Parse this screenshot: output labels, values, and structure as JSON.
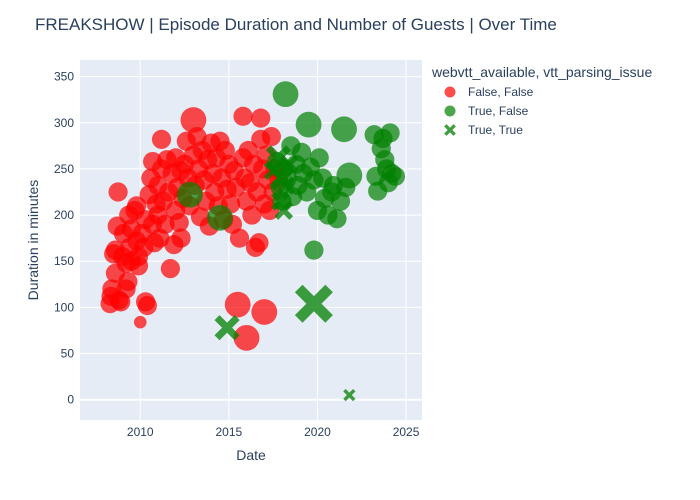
{
  "chart_data": {
    "type": "scatter",
    "title": "FREAKSHOW | Episode Duration and Number of Guests | Over Time",
    "xlabel": "Date",
    "ylabel": "Duration in minutes",
    "xlim": [
      2006.6,
      2025.9
    ],
    "ylim": [
      -22,
      368
    ],
    "xticks": [
      2010,
      2015,
      2020,
      2025
    ],
    "yticks": [
      0,
      50,
      100,
      150,
      200,
      250,
      300,
      350
    ],
    "grid": true,
    "legend": {
      "title": "webvtt_available, vtt_parsing_issue",
      "placement": "right"
    },
    "colors": {
      "red": "#ff0000",
      "green": "#008000",
      "plot_bg": "#e5ecf6"
    },
    "series": [
      {
        "name": "False, False",
        "color": "#ff0000",
        "symbol": "circle",
        "points": [
          {
            "x": 2008.3,
            "y": 104,
            "g": 2
          },
          {
            "x": 2008.35,
            "y": 112,
            "g": 2
          },
          {
            "x": 2008.4,
            "y": 120,
            "g": 2
          },
          {
            "x": 2008.5,
            "y": 158,
            "g": 2
          },
          {
            "x": 2008.6,
            "y": 162,
            "g": 2
          },
          {
            "x": 2008.6,
            "y": 137,
            "g": 2
          },
          {
            "x": 2008.7,
            "y": 188,
            "g": 2
          },
          {
            "x": 2008.75,
            "y": 225,
            "g": 2
          },
          {
            "x": 2008.8,
            "y": 108,
            "g": 2
          },
          {
            "x": 2008.9,
            "y": 106,
            "g": 2
          },
          {
            "x": 2009.0,
            "y": 155,
            "g": 2
          },
          {
            "x": 2009.05,
            "y": 180,
            "g": 2
          },
          {
            "x": 2009.2,
            "y": 148,
            "g": 2
          },
          {
            "x": 2009.2,
            "y": 120,
            "g": 2
          },
          {
            "x": 2009.3,
            "y": 128,
            "g": 2
          },
          {
            "x": 2009.35,
            "y": 200,
            "g": 2
          },
          {
            "x": 2009.4,
            "y": 165,
            "g": 2
          },
          {
            "x": 2009.5,
            "y": 150,
            "g": 2
          },
          {
            "x": 2009.5,
            "y": 185,
            "g": 2
          },
          {
            "x": 2009.7,
            "y": 205,
            "g": 2
          },
          {
            "x": 2009.8,
            "y": 210,
            "g": 2
          },
          {
            "x": 2009.8,
            "y": 172,
            "g": 2
          },
          {
            "x": 2009.9,
            "y": 155,
            "g": 2
          },
          {
            "x": 2009.9,
            "y": 145,
            "g": 2
          },
          {
            "x": 2010.0,
            "y": 84,
            "g": 1
          },
          {
            "x": 2010.1,
            "y": 180,
            "g": 2
          },
          {
            "x": 2010.2,
            "y": 165,
            "g": 2
          },
          {
            "x": 2010.3,
            "y": 195,
            "g": 2
          },
          {
            "x": 2010.3,
            "y": 106,
            "g": 2
          },
          {
            "x": 2010.4,
            "y": 102,
            "g": 2
          },
          {
            "x": 2010.5,
            "y": 222,
            "g": 2
          },
          {
            "x": 2010.6,
            "y": 240,
            "g": 2
          },
          {
            "x": 2010.7,
            "y": 258,
            "g": 2
          },
          {
            "x": 2010.7,
            "y": 190,
            "g": 2
          },
          {
            "x": 2010.8,
            "y": 170,
            "g": 2
          },
          {
            "x": 2010.9,
            "y": 212,
            "g": 2
          },
          {
            "x": 2011.0,
            "y": 232,
            "g": 2
          },
          {
            "x": 2011.0,
            "y": 200,
            "g": 2
          },
          {
            "x": 2011.1,
            "y": 175,
            "g": 2
          },
          {
            "x": 2011.2,
            "y": 282,
            "g": 2
          },
          {
            "x": 2011.2,
            "y": 250,
            "g": 2
          },
          {
            "x": 2011.3,
            "y": 215,
            "g": 2
          },
          {
            "x": 2011.4,
            "y": 190,
            "g": 2
          },
          {
            "x": 2011.5,
            "y": 260,
            "g": 2
          },
          {
            "x": 2011.6,
            "y": 225,
            "g": 2
          },
          {
            "x": 2011.7,
            "y": 142,
            "g": 2
          },
          {
            "x": 2011.8,
            "y": 245,
            "g": 2
          },
          {
            "x": 2011.9,
            "y": 168,
            "g": 2
          },
          {
            "x": 2012.0,
            "y": 262,
            "g": 2
          },
          {
            "x": 2012.0,
            "y": 205,
            "g": 2
          },
          {
            "x": 2012.1,
            "y": 230,
            "g": 2
          },
          {
            "x": 2012.2,
            "y": 192,
            "g": 2
          },
          {
            "x": 2012.3,
            "y": 248,
            "g": 2
          },
          {
            "x": 2012.3,
            "y": 175,
            "g": 2
          },
          {
            "x": 2012.4,
            "y": 218,
            "g": 2
          },
          {
            "x": 2012.5,
            "y": 255,
            "g": 2
          },
          {
            "x": 2012.6,
            "y": 280,
            "g": 2
          },
          {
            "x": 2012.7,
            "y": 240,
            "g": 2
          },
          {
            "x": 2012.8,
            "y": 210,
            "g": 2
          },
          {
            "x": 2013.0,
            "y": 303,
            "g": 3
          },
          {
            "x": 2013.0,
            "y": 265,
            "g": 2
          },
          {
            "x": 2013.1,
            "y": 232,
            "g": 2
          },
          {
            "x": 2013.2,
            "y": 285,
            "g": 2
          },
          {
            "x": 2013.3,
            "y": 250,
            "g": 2
          },
          {
            "x": 2013.4,
            "y": 198,
            "g": 2
          },
          {
            "x": 2013.5,
            "y": 270,
            "g": 2
          },
          {
            "x": 2013.6,
            "y": 238,
            "g": 2
          },
          {
            "x": 2013.7,
            "y": 215,
            "g": 2
          },
          {
            "x": 2013.8,
            "y": 260,
            "g": 2
          },
          {
            "x": 2013.9,
            "y": 188,
            "g": 2
          },
          {
            "x": 2014.0,
            "y": 278,
            "g": 2
          },
          {
            "x": 2014.1,
            "y": 245,
            "g": 2
          },
          {
            "x": 2014.2,
            "y": 225,
            "g": 2
          },
          {
            "x": 2014.3,
            "y": 262,
            "g": 2
          },
          {
            "x": 2014.4,
            "y": 210,
            "g": 2
          },
          {
            "x": 2014.5,
            "y": 280,
            "g": 2
          },
          {
            "x": 2014.6,
            "y": 240,
            "g": 2
          },
          {
            "x": 2014.7,
            "y": 195,
            "g": 2
          },
          {
            "x": 2014.8,
            "y": 270,
            "g": 2
          },
          {
            "x": 2014.9,
            "y": 228,
            "g": 2
          },
          {
            "x": 2015.0,
            "y": 255,
            "g": 2
          },
          {
            "x": 2015.1,
            "y": 212,
            "g": 2
          },
          {
            "x": 2015.2,
            "y": 190,
            "g": 2
          },
          {
            "x": 2015.3,
            "y": 248,
            "g": 2
          },
          {
            "x": 2015.4,
            "y": 230,
            "g": 2
          },
          {
            "x": 2015.5,
            "y": 103,
            "g": 3
          },
          {
            "x": 2015.6,
            "y": 175,
            "g": 2
          },
          {
            "x": 2015.8,
            "y": 307,
            "g": 2
          },
          {
            "x": 2015.8,
            "y": 262,
            "g": 2
          },
          {
            "x": 2015.9,
            "y": 240,
            "g": 2
          },
          {
            "x": 2016.0,
            "y": 67,
            "g": 3
          },
          {
            "x": 2016.0,
            "y": 215,
            "g": 2
          },
          {
            "x": 2016.1,
            "y": 270,
            "g": 2
          },
          {
            "x": 2016.2,
            "y": 235,
            "g": 2
          },
          {
            "x": 2016.3,
            "y": 200,
            "g": 2
          },
          {
            "x": 2016.4,
            "y": 255,
            "g": 2
          },
          {
            "x": 2016.5,
            "y": 165,
            "g": 2
          },
          {
            "x": 2016.6,
            "y": 225,
            "g": 2
          },
          {
            "x": 2016.7,
            "y": 170,
            "g": 2
          },
          {
            "x": 2016.8,
            "y": 305,
            "g": 2
          },
          {
            "x": 2016.8,
            "y": 282,
            "g": 2
          },
          {
            "x": 2016.9,
            "y": 250,
            "g": 2
          },
          {
            "x": 2017.0,
            "y": 95,
            "g": 3
          },
          {
            "x": 2017.0,
            "y": 212,
            "g": 2
          },
          {
            "x": 2017.1,
            "y": 265,
            "g": 2
          },
          {
            "x": 2017.2,
            "y": 238,
            "g": 2
          },
          {
            "x": 2017.3,
            "y": 205,
            "g": 2
          },
          {
            "x": 2017.4,
            "y": 285,
            "g": 2
          },
          {
            "x": 2017.5,
            "y": 225,
            "g": 2
          },
          {
            "x": 2017.6,
            "y": 250,
            "g": 2
          },
          {
            "x": 2017.8,
            "y": 240,
            "g": 2
          }
        ]
      },
      {
        "name": "True, False",
        "color": "#008000",
        "symbol": "circle",
        "points": [
          {
            "x": 2012.8,
            "y": 222,
            "g": 3
          },
          {
            "x": 2014.5,
            "y": 197,
            "g": 3
          },
          {
            "x": 2017.7,
            "y": 258,
            "g": 2
          },
          {
            "x": 2017.9,
            "y": 230,
            "g": 2
          },
          {
            "x": 2018.0,
            "y": 215,
            "g": 2
          },
          {
            "x": 2018.1,
            "y": 250,
            "g": 2
          },
          {
            "x": 2018.2,
            "y": 331,
            "g": 3
          },
          {
            "x": 2018.3,
            "y": 240,
            "g": 2
          },
          {
            "x": 2018.5,
            "y": 275,
            "g": 2
          },
          {
            "x": 2018.6,
            "y": 220,
            "g": 2
          },
          {
            "x": 2018.8,
            "y": 255,
            "g": 2
          },
          {
            "x": 2018.9,
            "y": 232,
            "g": 2
          },
          {
            "x": 2019.1,
            "y": 268,
            "g": 2
          },
          {
            "x": 2019.2,
            "y": 245,
            "g": 2
          },
          {
            "x": 2019.4,
            "y": 225,
            "g": 2
          },
          {
            "x": 2019.5,
            "y": 298,
            "g": 3
          },
          {
            "x": 2019.6,
            "y": 252,
            "g": 2
          },
          {
            "x": 2019.8,
            "y": 162,
            "g": 2
          },
          {
            "x": 2019.8,
            "y": 238,
            "g": 2
          },
          {
            "x": 2020.0,
            "y": 205,
            "g": 2
          },
          {
            "x": 2020.1,
            "y": 262,
            "g": 2
          },
          {
            "x": 2020.3,
            "y": 240,
            "g": 2
          },
          {
            "x": 2020.4,
            "y": 218,
            "g": 2
          },
          {
            "x": 2020.6,
            "y": 200,
            "g": 2
          },
          {
            "x": 2020.8,
            "y": 225,
            "g": 2
          },
          {
            "x": 2020.9,
            "y": 232,
            "g": 2
          },
          {
            "x": 2021.1,
            "y": 196,
            "g": 2
          },
          {
            "x": 2021.3,
            "y": 215,
            "g": 2
          },
          {
            "x": 2021.5,
            "y": 293,
            "g": 3
          },
          {
            "x": 2021.6,
            "y": 230,
            "g": 2
          },
          {
            "x": 2021.8,
            "y": 243,
            "g": 3
          },
          {
            "x": 2023.2,
            "y": 287,
            "g": 2
          },
          {
            "x": 2023.3,
            "y": 242,
            "g": 2
          },
          {
            "x": 2023.4,
            "y": 226,
            "g": 2
          },
          {
            "x": 2023.6,
            "y": 272,
            "g": 2
          },
          {
            "x": 2023.7,
            "y": 283,
            "g": 2
          },
          {
            "x": 2023.8,
            "y": 260,
            "g": 2
          },
          {
            "x": 2023.9,
            "y": 250,
            "g": 2
          },
          {
            "x": 2024.0,
            "y": 235,
            "g": 2
          },
          {
            "x": 2024.1,
            "y": 289,
            "g": 2
          },
          {
            "x": 2024.2,
            "y": 245,
            "g": 2
          },
          {
            "x": 2024.4,
            "y": 242,
            "g": 2
          }
        ]
      },
      {
        "name": "True, True",
        "color": "#008000",
        "symbol": "x",
        "points": [
          {
            "x": 2014.9,
            "y": 78,
            "g": 3
          },
          {
            "x": 2017.5,
            "y": 248,
            "g": 2
          },
          {
            "x": 2017.8,
            "y": 262,
            "g": 3
          },
          {
            "x": 2017.9,
            "y": 215,
            "g": 2
          },
          {
            "x": 2018.0,
            "y": 240,
            "g": 3
          },
          {
            "x": 2018.1,
            "y": 205,
            "g": 2
          },
          {
            "x": 2018.2,
            "y": 232,
            "g": 2
          },
          {
            "x": 2018.4,
            "y": 255,
            "g": 2
          },
          {
            "x": 2019.8,
            "y": 104,
            "g": 5
          },
          {
            "x": 2021.8,
            "y": 5,
            "g": 1
          }
        ]
      }
    ]
  }
}
